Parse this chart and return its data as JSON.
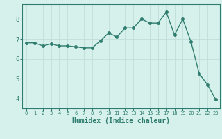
{
  "x": [
    0,
    1,
    2,
    3,
    4,
    5,
    6,
    7,
    8,
    9,
    10,
    11,
    12,
    13,
    14,
    15,
    16,
    17,
    18,
    19,
    20,
    21,
    22,
    23
  ],
  "y": [
    6.8,
    6.8,
    6.65,
    6.75,
    6.65,
    6.65,
    6.6,
    6.55,
    6.55,
    6.9,
    7.3,
    7.1,
    7.55,
    7.55,
    8.0,
    7.8,
    7.8,
    8.35,
    7.2,
    8.0,
    6.85,
    5.25,
    4.7,
    3.95
  ],
  "line_color": "#2e7d6e",
  "marker": "o",
  "marker_size": 2.5,
  "linewidth": 1.0,
  "xlabel": "Humidex (Indice chaleur)",
  "xlabel_fontsize": 7,
  "xlabel_fontweight": "bold",
  "xlim": [
    -0.5,
    23.5
  ],
  "ylim": [
    3.5,
    8.75
  ],
  "yticks": [
    4,
    5,
    6,
    7,
    8
  ],
  "xticks": [
    0,
    1,
    2,
    3,
    4,
    5,
    6,
    7,
    8,
    9,
    10,
    11,
    12,
    13,
    14,
    15,
    16,
    17,
    18,
    19,
    20,
    21,
    22,
    23
  ],
  "xtick_fontsize": 5,
  "ytick_fontsize": 6.5,
  "bg_color": "#d6f0ec",
  "grid_color": "#c0ddd9",
  "spine_color": "#2e7d6e",
  "title": ""
}
